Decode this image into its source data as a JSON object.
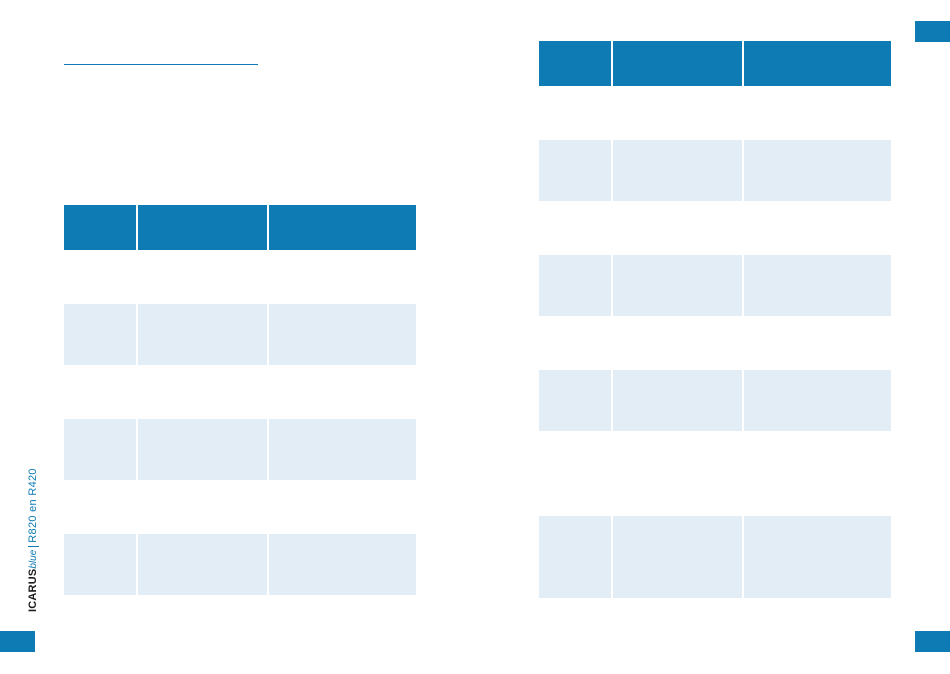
{
  "spine": {
    "brand_bold": "ICARUS",
    "brand_italic": "blue",
    "model": "R820 en R420"
  },
  "colors": {
    "accent": "#0e7bb5",
    "row_shade": "#e2edf6"
  },
  "left_table": {
    "rows": [
      "head",
      "plain",
      "shaded",
      "plain",
      "shaded",
      "plain",
      "shaded"
    ]
  },
  "right_table": {
    "rows": [
      "head",
      "plain",
      "shaded",
      "plain",
      "shaded",
      "plain",
      "shaded",
      "plain",
      "shaded"
    ]
  }
}
